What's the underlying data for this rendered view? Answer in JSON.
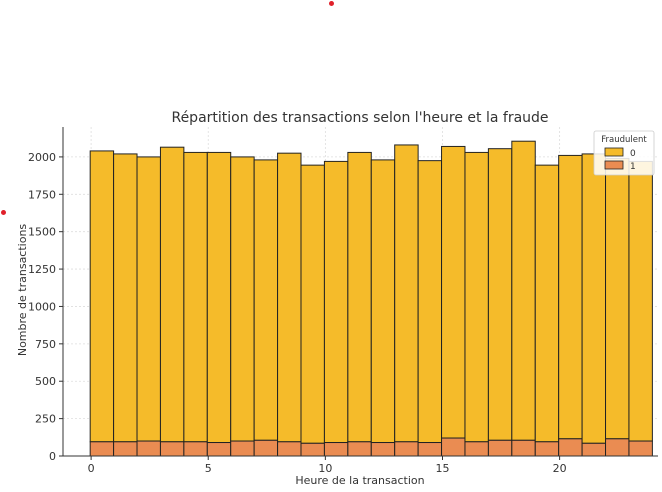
{
  "chart_data": {
    "type": "bar",
    "stacked": true,
    "title": "Répartition des transactions selon l'heure et la fraude",
    "xlabel": "Heure de la transaction",
    "ylabel": "Nombre de transactions",
    "x": [
      0,
      1,
      2,
      3,
      4,
      5,
      6,
      7,
      8,
      9,
      10,
      11,
      12,
      13,
      14,
      15,
      16,
      17,
      18,
      19,
      20,
      21,
      22,
      23
    ],
    "xlim": [
      -1.2,
      24.2
    ],
    "ylim": [
      0,
      2200
    ],
    "xticks": [
      0,
      5,
      10,
      15,
      20
    ],
    "yticks": [
      0,
      250,
      500,
      750,
      1000,
      1250,
      1500,
      1750,
      2000
    ],
    "grid": true,
    "legend": {
      "title": "Fraudulent",
      "placement": "top-right"
    },
    "series": [
      {
        "name": "0",
        "color": "#f5bb2a",
        "totals": [
          2040,
          2020,
          2000,
          2065,
          2030,
          2030,
          2000,
          1980,
          2025,
          1945,
          1970,
          2030,
          1980,
          2080,
          1975,
          2070,
          2030,
          2055,
          2105,
          1945,
          2010,
          2020,
          1990,
          1970
        ]
      },
      {
        "name": "1",
        "color": "#ea8c52",
        "values": [
          95,
          95,
          100,
          95,
          95,
          90,
          100,
          105,
          95,
          85,
          90,
          95,
          90,
          95,
          90,
          120,
          95,
          105,
          105,
          95,
          115,
          85,
          115,
          100
        ]
      }
    ]
  }
}
